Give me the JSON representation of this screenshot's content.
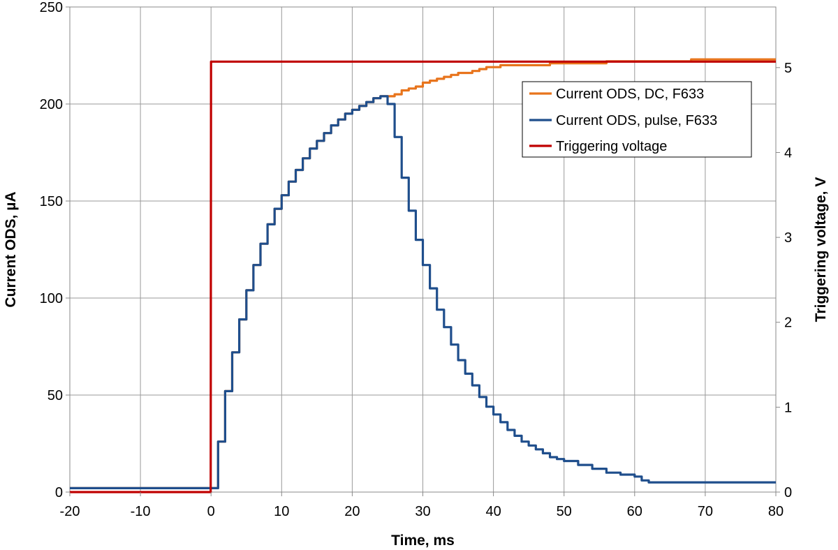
{
  "chart_data": {
    "type": "line",
    "xlabel": "Time, ms",
    "ylabel": "Current ODS, µA",
    "y2label": "Triggering voltage, V",
    "xlim": [
      -20,
      80
    ],
    "ylim": [
      0,
      250
    ],
    "y2lim": [
      0,
      5.714
    ],
    "xticks": [
      "-20",
      "-10",
      "0",
      "10",
      "20",
      "30",
      "40",
      "50",
      "60",
      "70",
      "80"
    ],
    "yticks": [
      "0",
      "50",
      "100",
      "150",
      "200",
      "250"
    ],
    "y2ticks": [
      "0",
      "1",
      "2",
      "3",
      "4",
      "5"
    ],
    "grid": true,
    "legend_position": "top-right",
    "series": [
      {
        "name": "Current ODS, DC, F633",
        "color": "#e8741c",
        "axis": "left",
        "x": [
          -20,
          -10,
          -0.2,
          0,
          1,
          2,
          3,
          4,
          5,
          6,
          7,
          8,
          9,
          10,
          11,
          12,
          13,
          14,
          15,
          16,
          17,
          18,
          19,
          20,
          21,
          22,
          23,
          24,
          25,
          26,
          27,
          28,
          29,
          30,
          31,
          32,
          33,
          34,
          35,
          36,
          37,
          38,
          39,
          40,
          41,
          42,
          43,
          44,
          45,
          46,
          47,
          48,
          49,
          50,
          52,
          54,
          56,
          58,
          60,
          62,
          64,
          66,
          68,
          70,
          72,
          74,
          76,
          78,
          80
        ],
        "y": [
          2,
          2,
          2,
          2,
          26,
          52,
          72,
          89,
          104,
          117,
          128,
          138,
          146,
          153,
          160,
          166,
          172,
          177,
          181,
          185,
          189,
          192,
          195,
          197,
          199,
          201,
          203,
          204,
          204,
          205,
          207,
          208,
          209,
          211,
          212,
          213,
          214,
          215,
          216,
          216,
          217,
          218,
          219,
          219,
          220,
          220,
          220,
          220,
          220,
          220,
          220,
          221,
          221,
          221,
          221,
          221,
          222,
          222,
          222,
          222,
          222,
          222,
          223,
          223,
          223,
          223,
          223,
          223,
          223
        ]
      },
      {
        "name": "Current ODS, pulse, F633",
        "color": "#1f4e8c",
        "axis": "left",
        "x": [
          -20,
          -10,
          -0.2,
          0,
          1,
          2,
          3,
          4,
          5,
          6,
          7,
          8,
          9,
          10,
          11,
          12,
          13,
          14,
          15,
          16,
          17,
          18,
          19,
          20,
          21,
          22,
          23,
          24,
          24.6,
          25,
          26,
          27,
          28,
          29,
          30,
          31,
          32,
          33,
          34,
          35,
          36,
          37,
          38,
          39,
          40,
          41,
          42,
          43,
          44,
          45,
          46,
          47,
          48,
          49,
          50,
          52,
          54,
          56,
          58,
          60,
          61,
          62,
          64,
          66,
          68,
          70,
          72,
          74,
          76,
          78,
          80
        ],
        "y": [
          2,
          2,
          2,
          2,
          26,
          52,
          72,
          89,
          104,
          117,
          128,
          138,
          146,
          153,
          160,
          166,
          172,
          177,
          181,
          185,
          189,
          192,
          195,
          197,
          199,
          201,
          203,
          204,
          204,
          200,
          183,
          162,
          145,
          130,
          117,
          105,
          94,
          85,
          76,
          68,
          61,
          55,
          49,
          44,
          40,
          36,
          32,
          29,
          26,
          24,
          22,
          20,
          18,
          17,
          16,
          14,
          12,
          10,
          9,
          8,
          6,
          5,
          5,
          5,
          5,
          5,
          5,
          5,
          5,
          5,
          5
        ]
      },
      {
        "name": "Triggering voltage",
        "color": "#c00000",
        "axis": "right",
        "x": [
          -20,
          -0.05,
          0,
          80
        ],
        "y": [
          0,
          0,
          5.07,
          5.07
        ]
      }
    ]
  }
}
